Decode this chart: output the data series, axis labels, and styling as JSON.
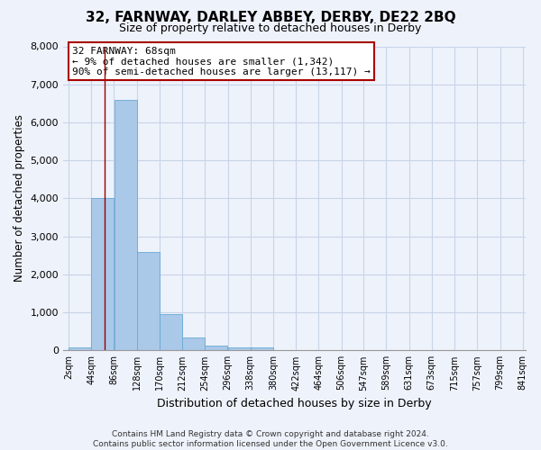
{
  "title": "32, FARNWAY, DARLEY ABBEY, DERBY, DE22 2BQ",
  "subtitle": "Size of property relative to detached houses in Derby",
  "xlabel": "Distribution of detached houses by size in Derby",
  "ylabel": "Number of detached properties",
  "bin_edges": [
    2,
    44,
    86,
    128,
    170,
    212,
    254,
    296,
    338,
    380,
    422,
    464,
    506,
    547,
    589,
    631,
    673,
    715,
    757,
    799,
    841
  ],
  "bar_heights": [
    70,
    4000,
    6600,
    2600,
    950,
    330,
    120,
    70,
    70,
    0,
    0,
    0,
    0,
    0,
    0,
    0,
    0,
    0,
    0,
    0
  ],
  "bar_color": "#aac8e8",
  "bar_edge_color": "#6aaad4",
  "property_line_x": 68,
  "property_line_color": "#990000",
  "annotation_line1": "32 FARNWAY: 68sqm",
  "annotation_line2": "← 9% of detached houses are smaller (1,342)",
  "annotation_line3": "90% of semi-detached houses are larger (13,117) →",
  "annotation_box_color": "#ffffff",
  "annotation_box_edge_color": "#aa0000",
  "ylim": [
    0,
    8000
  ],
  "yticks": [
    0,
    1000,
    2000,
    3000,
    4000,
    5000,
    6000,
    7000,
    8000
  ],
  "background_color": "#eef2fb",
  "grid_color": "#c8d4e8",
  "footer_text": "Contains HM Land Registry data © Crown copyright and database right 2024.\nContains public sector information licensed under the Open Government Licence v3.0.",
  "tick_labels": [
    "2sqm",
    "44sqm",
    "86sqm",
    "128sqm",
    "170sqm",
    "212sqm",
    "254sqm",
    "296sqm",
    "338sqm",
    "380sqm",
    "422sqm",
    "464sqm",
    "506sqm",
    "547sqm",
    "589sqm",
    "631sqm",
    "673sqm",
    "715sqm",
    "757sqm",
    "799sqm",
    "841sqm"
  ]
}
